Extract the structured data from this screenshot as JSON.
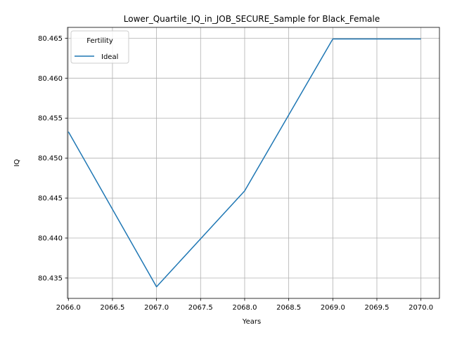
{
  "chart_data": {
    "type": "line",
    "title": "Lower_Quartile_IQ_in_JOB_SECURE_Sample for Black_Female",
    "xlabel": "Years",
    "ylabel": "IQ",
    "x": [
      2066,
      2067,
      2068,
      2069,
      2070
    ],
    "series": [
      {
        "name": "Ideal",
        "color": "#1f77b4",
        "values": [
          80.4533,
          80.4339,
          80.4459,
          80.4649,
          80.4649
        ]
      }
    ],
    "xlim": [
      2065.99,
      2070.21
    ],
    "ylim": [
      80.43245,
      80.46635
    ],
    "xticks": [
      "2066.0",
      "2066.5",
      "2067.0",
      "2067.5",
      "2068.0",
      "2068.5",
      "2069.0",
      "2069.5",
      "2070.0"
    ],
    "xtick_values": [
      2066.0,
      2066.5,
      2067.0,
      2067.5,
      2068.0,
      2068.5,
      2069.0,
      2069.5,
      2070.0
    ],
    "yticks": [
      "80.435",
      "80.440",
      "80.445",
      "80.450",
      "80.455",
      "80.460",
      "80.465"
    ],
    "ytick_values": [
      80.435,
      80.44,
      80.445,
      80.45,
      80.455,
      80.46,
      80.465
    ],
    "grid": true,
    "legend": {
      "title": "Fertility",
      "placement": "top-left"
    }
  }
}
